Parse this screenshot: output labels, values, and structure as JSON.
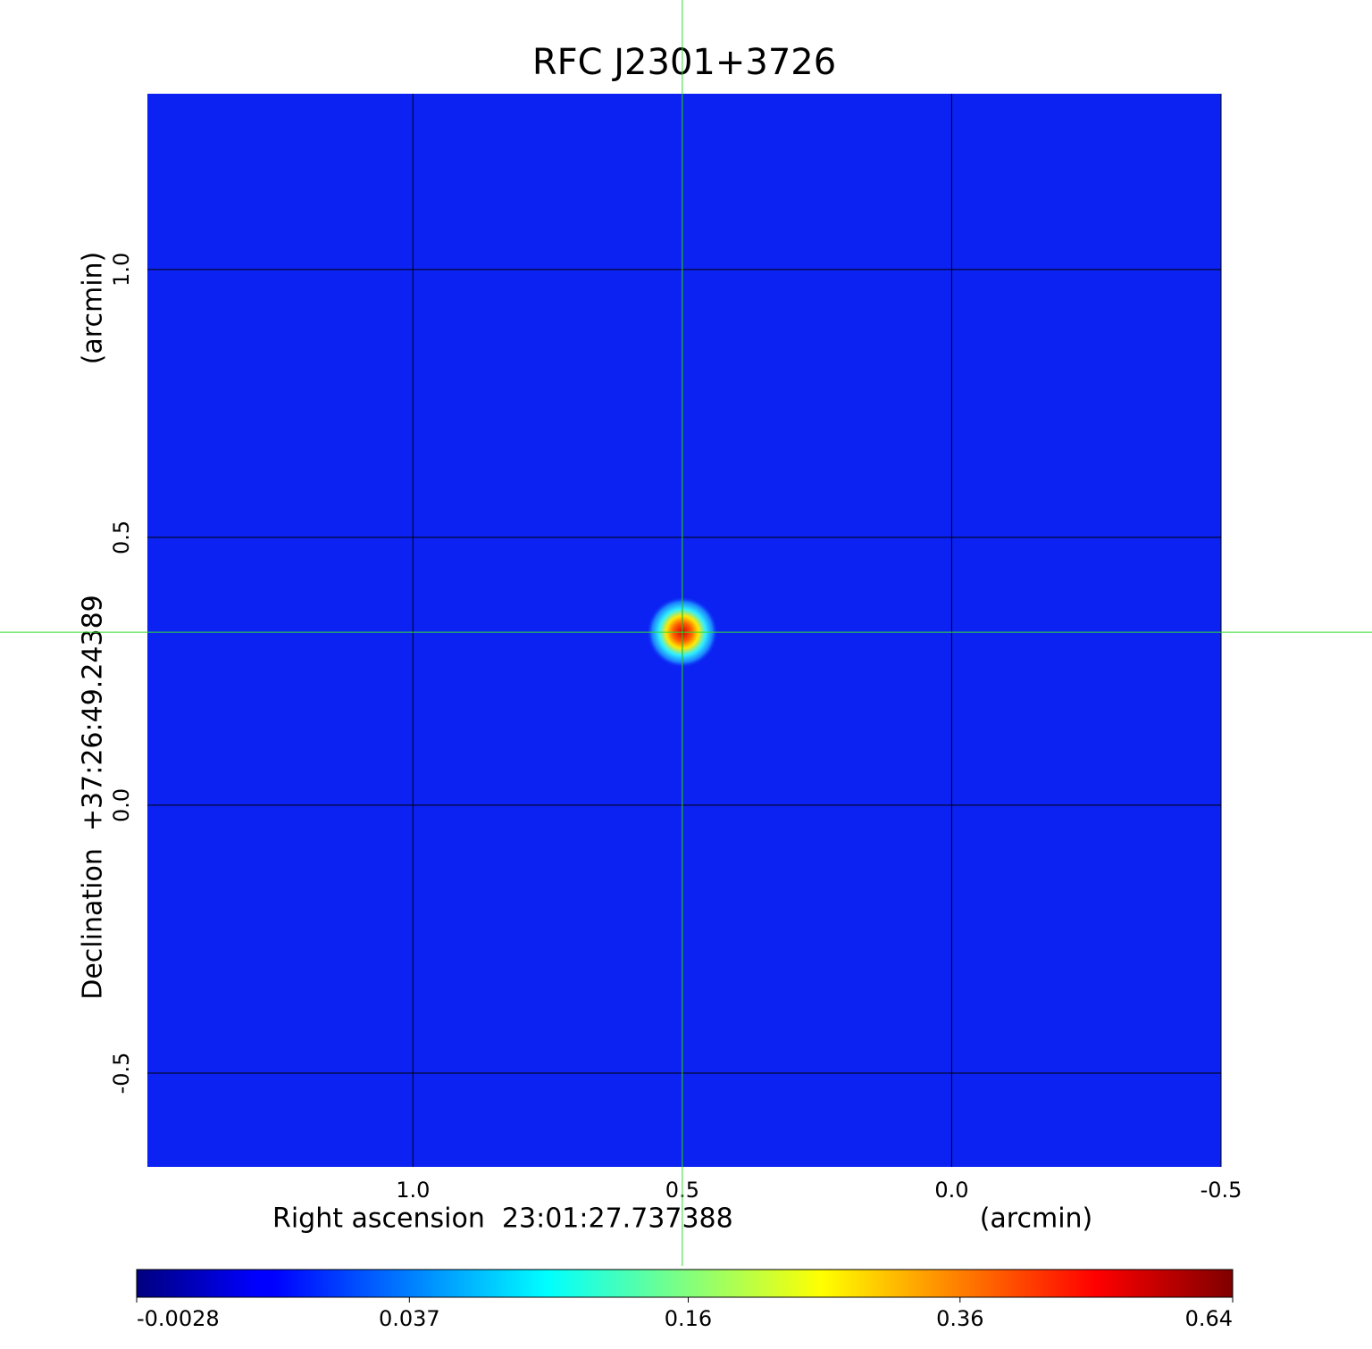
{
  "chart_data": {
    "type": "image",
    "title": "RFC J2301+3726",
    "title_color": "#1a1add",
    "x_label": "Right ascension  23:01:27.737388",
    "x_unit": "(arcmin)",
    "y_label": "Declination  +37:26:49.24389",
    "y_unit": "(arcmin)",
    "xlim": [
      1.493,
      -0.5
    ],
    "ylim": [
      -0.675,
      1.328
    ],
    "xticks": [
      {
        "value": 1,
        "label": "1.0"
      },
      0.5,
      {
        "value": 0,
        "label": "0.0"
      },
      -0.5
    ],
    "yticks": [
      {
        "value": 1,
        "label": "1.0"
      },
      0.5,
      {
        "value": 0,
        "label": "0.0"
      },
      -0.5
    ],
    "grid": true,
    "background_color": "#0b22f2",
    "crosshair": {
      "x": 0.5,
      "y": 0.323,
      "color": "#33dd33"
    },
    "colorbar": {
      "scale": "sqrt",
      "lim": [
        -0.0028,
        0.64
      ],
      "ticks": [
        -0.0028,
        0.037,
        0.16,
        0.36,
        0.64
      ]
    }
  }
}
